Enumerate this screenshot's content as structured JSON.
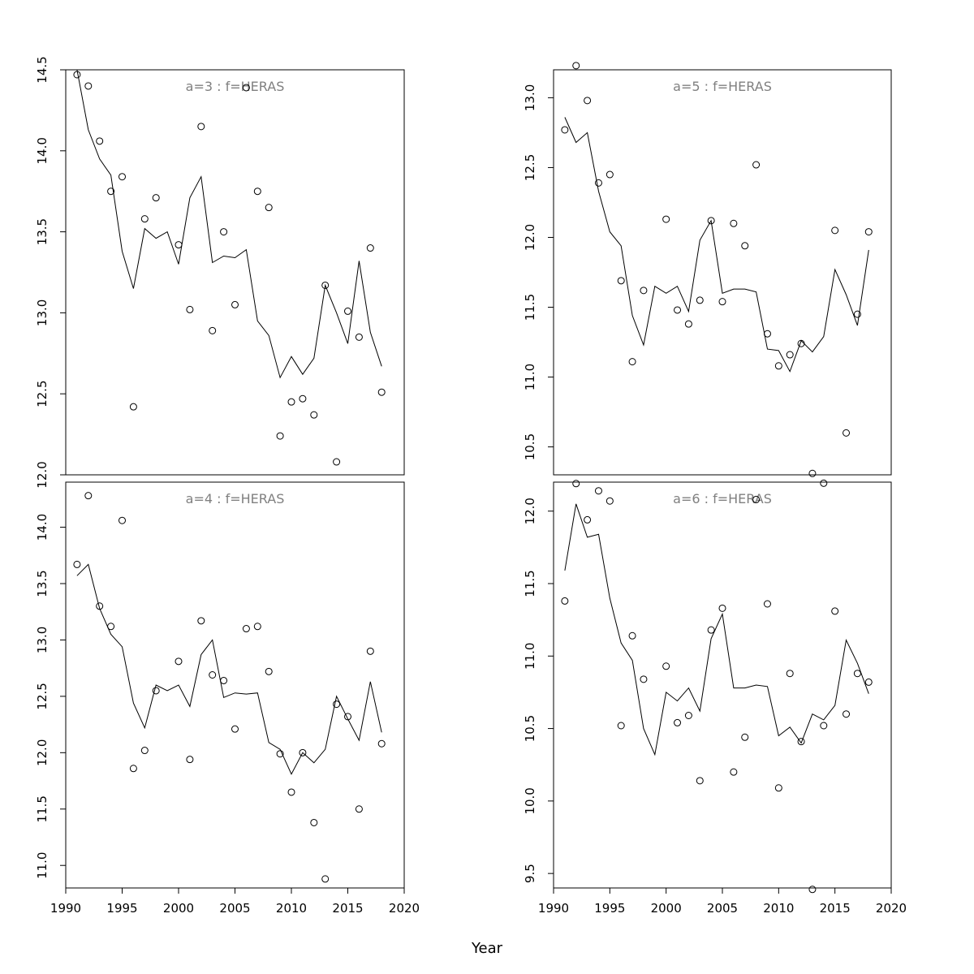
{
  "xlabel": "Year",
  "chart_data": [
    {
      "type": "scatter",
      "title": "a=3  :  f=HERAS",
      "xlim": [
        1990,
        2020
      ],
      "ylim": [
        12.0,
        14.5
      ],
      "x_ticks": [
        1990,
        1995,
        2000,
        2005,
        2010,
        2015,
        2020
      ],
      "y_ticks": [
        "12.0",
        "12.5",
        "13.0",
        "13.5",
        "14.0",
        "14.5"
      ],
      "x_tick_labels_shown": false,
      "observed": {
        "x": [
          1991,
          1992,
          1993,
          1994,
          1995,
          1996,
          1997,
          1998,
          2000,
          2001,
          2002,
          2003,
          2004,
          2005,
          2006,
          2007,
          2008,
          2009,
          2010,
          2011,
          2012,
          2013,
          2014,
          2015,
          2016,
          2017,
          2018
        ],
        "y": [
          14.47,
          14.4,
          14.06,
          13.75,
          13.84,
          12.42,
          13.58,
          13.71,
          13.42,
          13.02,
          14.15,
          12.89,
          13.5,
          13.05,
          14.39,
          13.75,
          13.65,
          12.24,
          12.45,
          12.47,
          12.37,
          13.17,
          12.08,
          13.01,
          12.85,
          13.4,
          12.51
        ]
      },
      "fitted": {
        "x": [
          1991,
          1992,
          1993,
          1994,
          1995,
          1996,
          1997,
          1998,
          1999,
          2000,
          2001,
          2002,
          2003,
          2004,
          2005,
          2006,
          2007,
          2008,
          2009,
          2010,
          2011,
          2012,
          2013,
          2014,
          2015,
          2016,
          2017,
          2018
        ],
        "y": [
          14.5,
          14.13,
          13.95,
          13.85,
          13.38,
          13.15,
          13.52,
          13.46,
          13.5,
          13.3,
          13.71,
          13.84,
          13.31,
          13.35,
          13.34,
          13.39,
          12.95,
          12.86,
          12.6,
          12.73,
          12.62,
          12.72,
          13.17,
          13.0,
          12.81,
          13.32,
          12.88,
          12.67
        ]
      }
    },
    {
      "type": "scatter",
      "title": "a=5  :  f=HERAS",
      "xlim": [
        1990,
        2020
      ],
      "ylim": [
        10.3,
        13.2
      ],
      "x_ticks": [
        1990,
        1995,
        2000,
        2005,
        2010,
        2015,
        2020
      ],
      "y_ticks": [
        "10.5",
        "11.0",
        "11.5",
        "12.0",
        "12.5",
        "13.0"
      ],
      "x_tick_labels_shown": false,
      "observed": {
        "x": [
          1991,
          1992,
          1993,
          1994,
          1995,
          1996,
          1997,
          1998,
          2000,
          2001,
          2002,
          2003,
          2004,
          2005,
          2006,
          2007,
          2008,
          2009,
          2010,
          2011,
          2012,
          2013,
          2014,
          2015,
          2016,
          2017,
          2018
        ],
        "y": [
          12.77,
          13.23,
          12.98,
          12.39,
          12.45,
          11.69,
          11.11,
          11.62,
          12.13,
          11.48,
          11.38,
          11.55,
          12.12,
          11.54,
          12.1,
          11.94,
          12.52,
          11.31,
          11.08,
          11.16,
          11.24,
          10.31,
          10.24,
          12.05,
          10.6,
          11.45,
          12.04
        ]
      },
      "fitted": {
        "x": [
          1991,
          1992,
          1993,
          1994,
          1995,
          1996,
          1997,
          1998,
          1999,
          2000,
          2001,
          2002,
          2003,
          2004,
          2005,
          2006,
          2007,
          2008,
          2009,
          2010,
          2011,
          2012,
          2013,
          2014,
          2015,
          2016,
          2017,
          2018
        ],
        "y": [
          12.86,
          12.68,
          12.75,
          12.33,
          12.04,
          11.94,
          11.44,
          11.23,
          11.65,
          11.6,
          11.65,
          11.47,
          11.98,
          12.12,
          11.6,
          11.63,
          11.63,
          11.61,
          11.2,
          11.19,
          11.04,
          11.26,
          11.18,
          11.29,
          11.77,
          11.59,
          11.37,
          11.91
        ]
      }
    },
    {
      "type": "scatter",
      "title": "a=4  :  f=HERAS",
      "xlim": [
        1990,
        2020
      ],
      "ylim": [
        10.8,
        14.4
      ],
      "x_ticks": [
        1990,
        1995,
        2000,
        2005,
        2010,
        2015,
        2020
      ],
      "y_ticks": [
        "11.0",
        "11.5",
        "12.0",
        "12.5",
        "13.0",
        "13.5",
        "14.0"
      ],
      "x_tick_labels_shown": true,
      "observed": {
        "x": [
          1991,
          1992,
          1993,
          1994,
          1995,
          1996,
          1997,
          1998,
          2000,
          2001,
          2002,
          2003,
          2004,
          2005,
          2006,
          2007,
          2008,
          2009,
          2010,
          2011,
          2012,
          2013,
          2014,
          2015,
          2016,
          2017,
          2018
        ],
        "y": [
          13.67,
          14.28,
          13.3,
          13.12,
          14.06,
          11.86,
          12.02,
          12.55,
          12.81,
          11.94,
          13.17,
          12.69,
          12.64,
          12.21,
          13.1,
          13.12,
          12.72,
          11.99,
          11.65,
          12.0,
          11.38,
          10.88,
          12.43,
          12.32,
          11.5,
          12.9,
          12.08
        ]
      },
      "fitted": {
        "x": [
          1991,
          1992,
          1993,
          1994,
          1995,
          1996,
          1997,
          1998,
          1999,
          2000,
          2001,
          2002,
          2003,
          2004,
          2005,
          2006,
          2007,
          2008,
          2009,
          2010,
          2011,
          2012,
          2013,
          2014,
          2015,
          2016,
          2017,
          2018
        ],
        "y": [
          13.57,
          13.67,
          13.28,
          13.05,
          12.94,
          12.44,
          12.22,
          12.6,
          12.55,
          12.6,
          12.41,
          12.87,
          13.0,
          12.49,
          12.53,
          12.52,
          12.53,
          12.09,
          12.03,
          11.81,
          12.0,
          11.91,
          12.03,
          12.5,
          12.3,
          12.11,
          12.63,
          12.18
        ]
      }
    },
    {
      "type": "scatter",
      "title": "a=6  :  f=HERAS",
      "xlim": [
        1990,
        2020
      ],
      "ylim": [
        9.4,
        12.2
      ],
      "x_ticks": [
        1990,
        1995,
        2000,
        2005,
        2010,
        2015,
        2020
      ],
      "y_ticks": [
        "9.5",
        "10.0",
        "10.5",
        "11.0",
        "11.5",
        "12.0"
      ],
      "x_tick_labels_shown": true,
      "observed": {
        "x": [
          1991,
          1992,
          1993,
          1994,
          1995,
          1996,
          1997,
          1998,
          2000,
          2001,
          2002,
          2003,
          2004,
          2005,
          2006,
          2007,
          2008,
          2009,
          2010,
          2011,
          2012,
          2013,
          2014,
          2015,
          2016,
          2017,
          2018
        ],
        "y": [
          11.38,
          12.19,
          11.94,
          12.14,
          12.07,
          10.52,
          11.14,
          10.84,
          10.93,
          10.54,
          10.59,
          10.14,
          11.18,
          11.33,
          10.2,
          10.44,
          12.08,
          11.36,
          10.09,
          10.88,
          10.41,
          9.39,
          10.52,
          11.31,
          10.6,
          10.88,
          10.82
        ]
      },
      "fitted": {
        "x": [
          1991,
          1992,
          1993,
          1994,
          1995,
          1996,
          1997,
          1998,
          1999,
          2000,
          2001,
          2002,
          2003,
          2004,
          2005,
          2006,
          2007,
          2008,
          2009,
          2010,
          2011,
          2012,
          2013,
          2014,
          2015,
          2016,
          2017,
          2018
        ],
        "y": [
          11.59,
          12.05,
          11.82,
          11.84,
          11.4,
          11.09,
          10.97,
          10.5,
          10.32,
          10.75,
          10.69,
          10.78,
          10.62,
          11.12,
          11.29,
          10.78,
          10.78,
          10.8,
          10.79,
          10.45,
          10.51,
          10.4,
          10.6,
          10.56,
          10.66,
          11.11,
          10.95,
          10.74
        ]
      }
    }
  ]
}
